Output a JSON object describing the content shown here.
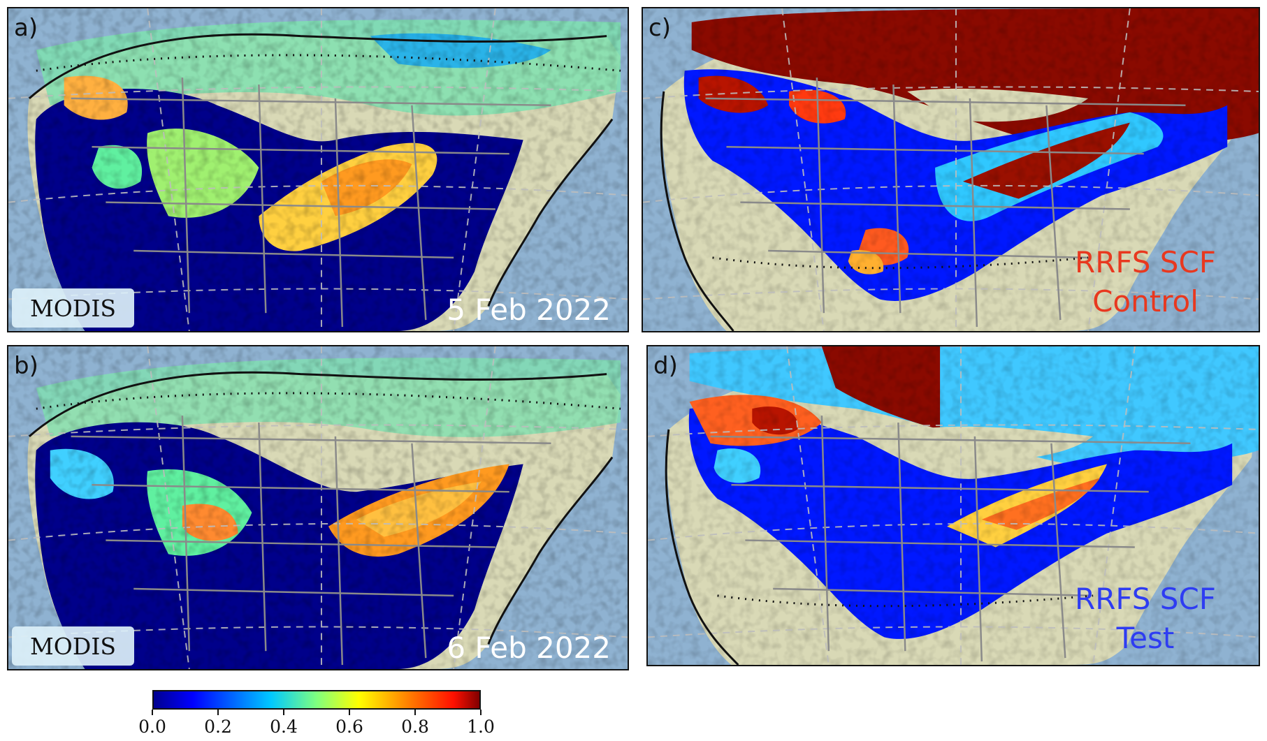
{
  "panels": [
    {
      "letter": "a)",
      "badge": "MODIS",
      "label": "5 Feb 2022"
    },
    {
      "letter": "b)",
      "badge": "MODIS",
      "label": "6 Feb 2022"
    },
    {
      "letter": "c)",
      "label_line1": "RRFS SCF",
      "label_line2": "Control"
    },
    {
      "letter": "d)",
      "label_line1": "RRFS SCF",
      "label_line2": "Test"
    }
  ],
  "colorbar": {
    "ticks": [
      "0.0",
      "0.2",
      "0.4",
      "0.6",
      "0.8",
      "1.0"
    ],
    "range": [
      0.0,
      1.0
    ],
    "colormap": "jet",
    "colors": [
      "#00008f",
      "#0000ff",
      "#00a0ff",
      "#40ffc0",
      "#ffff00",
      "#ff9000",
      "#ff2000",
      "#800000"
    ]
  },
  "colors": {
    "ocean": "#8fb2d1",
    "land": "#d9d9b6",
    "no_snow": "#000080",
    "control_text": "#e8381f",
    "test_text": "#2e3cf2"
  }
}
